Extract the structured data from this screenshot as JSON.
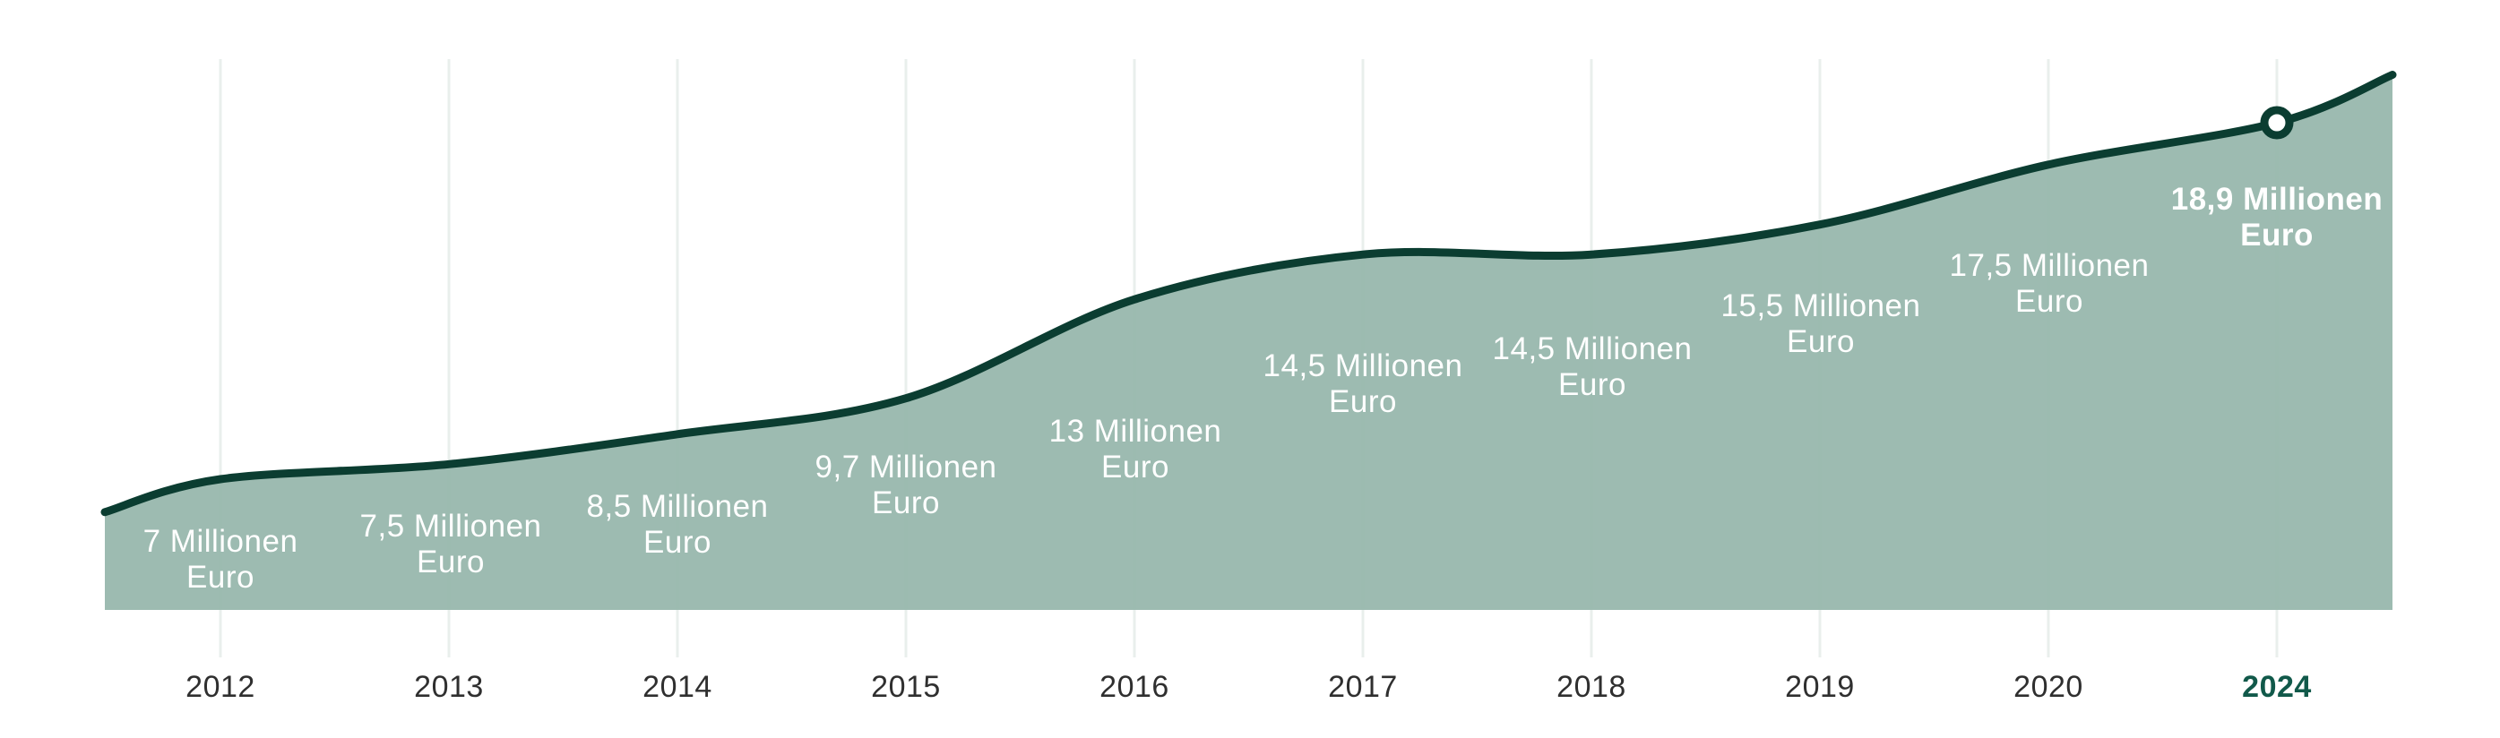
{
  "chart_data": {
    "type": "area",
    "title": "",
    "unit": "Millionen Euro",
    "xlabel": "",
    "ylabel": "",
    "categories": [
      "2012",
      "2013",
      "2014",
      "2015",
      "2016",
      "2017",
      "2018",
      "2019",
      "2020",
      "2024"
    ],
    "values": [
      7,
      7.5,
      8.5,
      9.7,
      13,
      14.5,
      14.5,
      15.5,
      17.5,
      18.9
    ],
    "ylim": [
      4.5,
      21
    ],
    "grid": "vertical-only",
    "legend_position": "none",
    "highlighted_category": "2024",
    "points": [
      {
        "year": "2012",
        "value": 7,
        "label_line1": "7 Millionen",
        "label_line2": "Euro",
        "emphasis": false
      },
      {
        "year": "2013",
        "value": 7.5,
        "label_line1": "7,5 Millionen",
        "label_line2": "Euro",
        "emphasis": false
      },
      {
        "year": "2014",
        "value": 8.5,
        "label_line1": "8,5 Millionen",
        "label_line2": "Euro",
        "emphasis": false
      },
      {
        "year": "2015",
        "value": 9.7,
        "label_line1": "9,7 Millionen",
        "label_line2": "Euro",
        "emphasis": false
      },
      {
        "year": "2016",
        "value": 13,
        "label_line1": "13 Millionen",
        "label_line2": "Euro",
        "emphasis": false
      },
      {
        "year": "2017",
        "value": 14.5,
        "label_line1": "14,5 Millionen",
        "label_line2": "Euro",
        "emphasis": false
      },
      {
        "year": "2018",
        "value": 14.5,
        "label_line1": "14,5 Millionen",
        "label_line2": "Euro",
        "emphasis": false
      },
      {
        "year": "2019",
        "value": 15.5,
        "label_line1": "15,5 Millionen",
        "label_line2": "Euro",
        "emphasis": false
      },
      {
        "year": "2020",
        "value": 17.5,
        "label_line1": "17,5 Millionen",
        "label_line2": "Euro",
        "emphasis": false
      },
      {
        "year": "2024",
        "value": 18.9,
        "label_line1": "18,9 Millionen",
        "label_line2": "Euro",
        "emphasis": true
      }
    ],
    "colors": {
      "area_fill": "#98B7AD",
      "line": "#0B3D31",
      "gridline": "#E9EFEC",
      "value_label_text": "#FFFFFF",
      "axis_text": "#2F2F2F",
      "highlight_axis_text": "#11594A",
      "marker_fill": "#FFFFFF",
      "marker_ring": "#0B3D31"
    }
  }
}
